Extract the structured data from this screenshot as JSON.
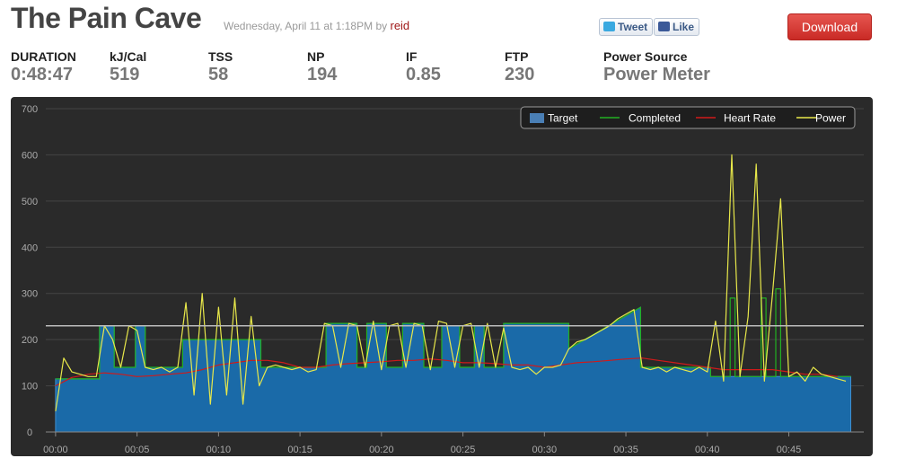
{
  "header": {
    "title": "The Pain Cave",
    "date": "Wednesday, April 11 at 1:18PM",
    "by": "by",
    "author": "reid",
    "tweet": "Tweet",
    "like": "Like",
    "download": "Download"
  },
  "stats": [
    {
      "label": "DURATION",
      "value": "0:48:47"
    },
    {
      "label": "kJ/Cal",
      "value": 519
    },
    {
      "label": "TSS",
      "value": 58
    },
    {
      "label": "NP",
      "value": 194
    },
    {
      "label": "IF",
      "value": 0.85
    },
    {
      "label": "FTP",
      "value": 230
    },
    {
      "label": "Power Source",
      "value": "Power Meter"
    }
  ],
  "chart_data": {
    "type": "line",
    "xlim": [
      -0.6,
      49.6
    ],
    "xticks": [
      {
        "value": 0,
        "label": "00:00"
      },
      {
        "value": 5,
        "label": "00:05"
      },
      {
        "value": 10,
        "label": "00:10"
      },
      {
        "value": 15,
        "label": "00:15"
      },
      {
        "value": 20,
        "label": "00:20"
      },
      {
        "value": 25,
        "label": "00:25"
      },
      {
        "value": 30,
        "label": "00:30"
      },
      {
        "value": 35,
        "label": "00:35"
      },
      {
        "value": 40,
        "label": "00:40"
      },
      {
        "value": 45,
        "label": "00:45"
      }
    ],
    "ylim": [
      0,
      700
    ],
    "yticks": [
      0,
      100,
      200,
      300,
      400,
      500,
      600,
      700
    ],
    "grid": true,
    "legend": "top-right",
    "series": [
      {
        "name": "Target",
        "color": "#1a6aa8",
        "style": "area",
        "x": [
          0,
          2.7,
          2.7,
          3.6,
          3.6,
          4.9,
          4.9,
          5.5,
          5.5,
          7.8,
          7.8,
          12.6,
          12.6,
          16.6,
          16.6,
          18.5,
          18.5,
          19.1,
          19.1,
          20.3,
          20.3,
          21.3,
          21.3,
          22.6,
          22.6,
          23.7,
          23.7,
          24.8,
          24.8,
          25.7,
          25.7,
          26.3,
          26.3,
          27.5,
          27.5,
          31.5,
          31.5,
          35.9,
          35.9,
          40.2,
          40.2,
          48.8
        ],
        "values": [
          115,
          115,
          230,
          230,
          140,
          140,
          230,
          230,
          140,
          140,
          200,
          200,
          140,
          140,
          235,
          235,
          140,
          140,
          235,
          235,
          140,
          140,
          235,
          235,
          140,
          140,
          230,
          230,
          140,
          140,
          230,
          230,
          140,
          140,
          235,
          235,
          180,
          270,
          140,
          140,
          120,
          120
        ]
      },
      {
        "name": "Completed",
        "color": "#22b022",
        "style": "line",
        "x": [
          0,
          2.7,
          2.7,
          3.6,
          3.6,
          4.9,
          4.9,
          5.5,
          5.5,
          7.8,
          7.8,
          12.6,
          12.6,
          16.6,
          16.6,
          18.5,
          18.5,
          19.1,
          19.1,
          20.3,
          20.3,
          21.3,
          21.3,
          22.6,
          22.6,
          23.7,
          23.7,
          24.8,
          24.8,
          25.7,
          25.7,
          26.3,
          26.3,
          27.5,
          27.5,
          31.5,
          31.5,
          35.9,
          35.9,
          40.2,
          40.2,
          41.4,
          41.4,
          41.7,
          41.7,
          43.3,
          43.3,
          43.6,
          43.6,
          44.2,
          44.2,
          44.5,
          44.5,
          48.8
        ],
        "values": [
          115,
          115,
          230,
          230,
          140,
          140,
          230,
          230,
          140,
          140,
          200,
          200,
          140,
          140,
          235,
          235,
          140,
          140,
          235,
          235,
          140,
          140,
          235,
          235,
          140,
          140,
          230,
          230,
          140,
          140,
          230,
          230,
          140,
          140,
          235,
          235,
          180,
          270,
          140,
          140,
          120,
          120,
          290,
          290,
          120,
          120,
          290,
          290,
          120,
          120,
          310,
          310,
          120,
          120
        ]
      },
      {
        "name": "Heart Rate",
        "color": "#d01a1a",
        "style": "line",
        "x": [
          0,
          1,
          2,
          3,
          4,
          5,
          6,
          7,
          8,
          9,
          10,
          11,
          12,
          13,
          14,
          15,
          16,
          17,
          18,
          19,
          20,
          21,
          22,
          23,
          24,
          25,
          26,
          27,
          28,
          29,
          30,
          31,
          32,
          33,
          34,
          35,
          36,
          37,
          38,
          39,
          40,
          41,
          42,
          43,
          44,
          45,
          46,
          47,
          48
        ],
        "values": [
          100,
          118,
          125,
          128,
          125,
          120,
          122,
          125,
          128,
          135,
          145,
          150,
          155,
          155,
          150,
          140,
          140,
          145,
          148,
          150,
          152,
          155,
          155,
          158,
          155,
          150,
          150,
          148,
          145,
          145,
          140,
          145,
          150,
          152,
          155,
          158,
          160,
          155,
          150,
          145,
          140,
          135,
          135,
          135,
          135,
          130,
          125,
          125,
          120
        ]
      },
      {
        "name": "Power",
        "color": "#e8e84a",
        "style": "line",
        "x": [
          0,
          0.5,
          1,
          1.5,
          2,
          2.5,
          3,
          3.5,
          4,
          4.5,
          5,
          5.5,
          6,
          6.5,
          7,
          7.5,
          8,
          8.5,
          9,
          9.5,
          10,
          10.5,
          11,
          11.5,
          12,
          12.5,
          13,
          13.5,
          14,
          14.5,
          15,
          15.5,
          16,
          16.5,
          17,
          17.5,
          18,
          18.5,
          19,
          19.5,
          20,
          20.5,
          21,
          21.5,
          22,
          22.5,
          23,
          23.5,
          24,
          24.5,
          25,
          25.5,
          26,
          26.5,
          27,
          27.5,
          28,
          28.5,
          29,
          29.5,
          30,
          30.5,
          31,
          31.5,
          32,
          32.5,
          33,
          33.5,
          34,
          34.5,
          35,
          35.5,
          36,
          36.5,
          37,
          37.5,
          38,
          38.5,
          39,
          39.5,
          40,
          40.5,
          41,
          41.5,
          42,
          42.5,
          43,
          43.5,
          44,
          44.5,
          45,
          45.5,
          46,
          46.5,
          47,
          47.5,
          48,
          48.5
        ],
        "values": [
          45,
          160,
          130,
          125,
          120,
          120,
          230,
          200,
          140,
          230,
          220,
          140,
          135,
          140,
          130,
          140,
          280,
          80,
          300,
          60,
          270,
          80,
          290,
          60,
          250,
          100,
          140,
          145,
          140,
          135,
          140,
          130,
          135,
          235,
          230,
          140,
          235,
          230,
          140,
          240,
          135,
          230,
          235,
          140,
          235,
          230,
          135,
          240,
          235,
          140,
          230,
          235,
          140,
          235,
          140,
          225,
          140,
          135,
          140,
          125,
          140,
          140,
          145,
          180,
          195,
          200,
          210,
          220,
          230,
          245,
          255,
          265,
          140,
          135,
          140,
          130,
          140,
          135,
          130,
          140,
          130,
          240,
          110,
          600,
          120,
          250,
          580,
          110,
          300,
          505,
          120,
          130,
          110,
          140,
          125,
          120,
          115,
          110
        ]
      }
    ]
  }
}
